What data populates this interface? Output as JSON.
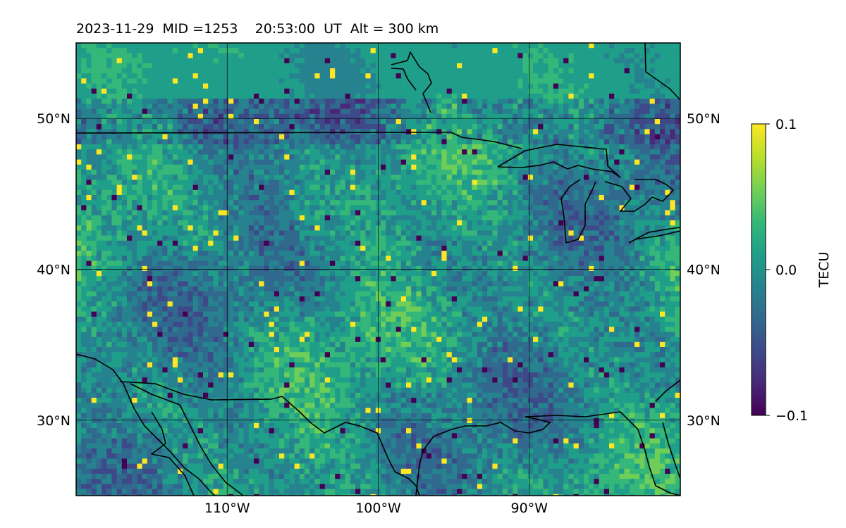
{
  "title": {
    "date": "2023-11-29",
    "mid": "MID =1253",
    "time": "20:53:00",
    "ut": "UT",
    "alt": "Alt = 300 km"
  },
  "map": {
    "lon_range": [
      -120,
      -80
    ],
    "lat_range": [
      25,
      55
    ],
    "lon_ticks": [
      {
        "value": -110,
        "label": "110°W"
      },
      {
        "value": -100,
        "label": "100°W"
      },
      {
        "value": -90,
        "label": "90°W"
      }
    ],
    "lat_ticks": [
      {
        "value": 30,
        "label": "30°N"
      },
      {
        "value": 40,
        "label": "40°N"
      },
      {
        "value": 50,
        "label": "50°N"
      }
    ],
    "gridlines": true,
    "data_description": "gridded detrended TEC perturbation field over North America",
    "colormap": "viridis"
  },
  "colorbar": {
    "label": "TECU",
    "min": -0.1,
    "max": 0.1,
    "ticks": [
      {
        "value": 0.1,
        "label": "0.1"
      },
      {
        "value": 0.0,
        "label": "0.0"
      },
      {
        "value": -0.1,
        "label": "−0.1"
      }
    ],
    "colors": [
      "#440154",
      "#482878",
      "#3e4989",
      "#31688e",
      "#26828e",
      "#1f9e89",
      "#35b779",
      "#6ece58",
      "#b5de2b",
      "#fde725"
    ]
  }
}
